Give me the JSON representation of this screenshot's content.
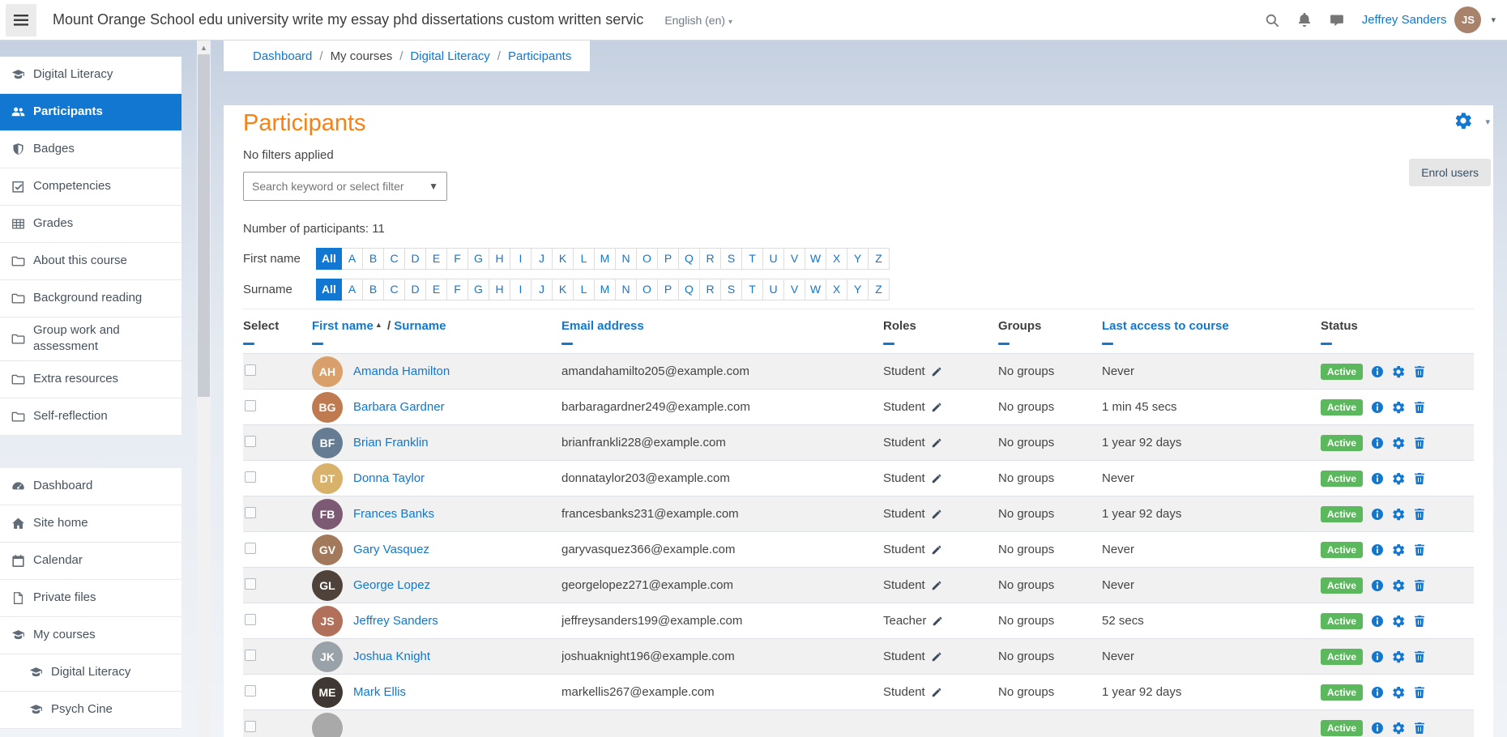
{
  "topbar": {
    "title": "Mount Orange School edu university write my essay phd dissertations custom written servic",
    "language": "English (en)",
    "user_name": "Jeffrey Sanders"
  },
  "breadcrumb": {
    "items": [
      {
        "label": "Dashboard",
        "link": true
      },
      {
        "label": "My courses",
        "link": false
      },
      {
        "label": "Digital Literacy",
        "link": true
      },
      {
        "label": "Participants",
        "link": true
      }
    ],
    "separator": "/"
  },
  "sidebar": {
    "course_items": [
      {
        "label": "Digital Literacy",
        "icon": "graduation-cap"
      },
      {
        "label": "Participants",
        "icon": "users",
        "active": true
      },
      {
        "label": "Badges",
        "icon": "shield"
      },
      {
        "label": "Competencies",
        "icon": "check-square"
      },
      {
        "label": "Grades",
        "icon": "table"
      },
      {
        "label": "About this course",
        "icon": "folder"
      },
      {
        "label": "Background reading",
        "icon": "folder"
      },
      {
        "label": "Group work and assessment",
        "icon": "folder"
      },
      {
        "label": "Extra resources",
        "icon": "folder"
      },
      {
        "label": "Self-reflection",
        "icon": "folder"
      }
    ],
    "site_items": [
      {
        "label": "Dashboard",
        "icon": "gauge"
      },
      {
        "label": "Site home",
        "icon": "home"
      },
      {
        "label": "Calendar",
        "icon": "calendar"
      },
      {
        "label": "Private files",
        "icon": "file"
      },
      {
        "label": "My courses",
        "icon": "graduation-cap"
      },
      {
        "label": "Digital Literacy",
        "icon": "graduation-cap",
        "indent": true
      },
      {
        "label": "Psych Cine",
        "icon": "graduation-cap",
        "indent": true
      }
    ]
  },
  "page": {
    "title": "Participants",
    "filters_status": "No filters applied",
    "search_placeholder": "Search keyword or select filter",
    "count_label": "Number of participants: 11",
    "enrol_button": "Enrol users"
  },
  "letter_filters": {
    "first_name_label": "First name",
    "surname_label": "Surname",
    "selected": "All",
    "letters": [
      "All",
      "A",
      "B",
      "C",
      "D",
      "E",
      "F",
      "G",
      "H",
      "I",
      "J",
      "K",
      "L",
      "M",
      "N",
      "O",
      "P",
      "Q",
      "R",
      "S",
      "T",
      "U",
      "V",
      "W",
      "X",
      "Y",
      "Z"
    ]
  },
  "table": {
    "headers": {
      "select": "Select",
      "first_name": "First name",
      "surname": "Surname",
      "name_separator": "/",
      "email": "Email address",
      "roles": "Roles",
      "groups": "Groups",
      "last_access": "Last access to course",
      "status": "Status"
    },
    "rows": [
      {
        "name": "Amanda Hamilton",
        "email": "amandahamilto205@example.com",
        "role": "Student",
        "groups": "No groups",
        "last_access": "Never",
        "status": "Active"
      },
      {
        "name": "Barbara Gardner",
        "email": "barbaragardner249@example.com",
        "role": "Student",
        "groups": "No groups",
        "last_access": "1 min 45 secs",
        "status": "Active"
      },
      {
        "name": "Brian Franklin",
        "email": "brianfrankli228@example.com",
        "role": "Student",
        "groups": "No groups",
        "last_access": "1 year 92 days",
        "status": "Active"
      },
      {
        "name": "Donna Taylor",
        "email": "donnataylor203@example.com",
        "role": "Student",
        "groups": "No groups",
        "last_access": "Never",
        "status": "Active"
      },
      {
        "name": "Frances Banks",
        "email": "francesbanks231@example.com",
        "role": "Student",
        "groups": "No groups",
        "last_access": "1 year 92 days",
        "status": "Active"
      },
      {
        "name": "Gary Vasquez",
        "email": "garyvasquez366@example.com",
        "role": "Student",
        "groups": "No groups",
        "last_access": "Never",
        "status": "Active"
      },
      {
        "name": "George Lopez",
        "email": "georgelopez271@example.com",
        "role": "Student",
        "groups": "No groups",
        "last_access": "Never",
        "status": "Active"
      },
      {
        "name": "Jeffrey Sanders",
        "email": "jeffreysanders199@example.com",
        "role": "Teacher",
        "groups": "No groups",
        "last_access": "52 secs",
        "status": "Active"
      },
      {
        "name": "Joshua Knight",
        "email": "joshuaknight196@example.com",
        "role": "Student",
        "groups": "No groups",
        "last_access": "Never",
        "status": "Active"
      },
      {
        "name": "Mark Ellis",
        "email": "markellis267@example.com",
        "role": "Student",
        "groups": "No groups",
        "last_access": "1 year 92 days",
        "status": "Active"
      },
      {
        "name": "",
        "email": "",
        "role": "",
        "groups": "",
        "last_access": "",
        "status": "Active"
      }
    ]
  },
  "colors": {
    "accent_blue": "#1177d1",
    "title_orange": "#f98012",
    "status_green": "#5cb85c"
  }
}
